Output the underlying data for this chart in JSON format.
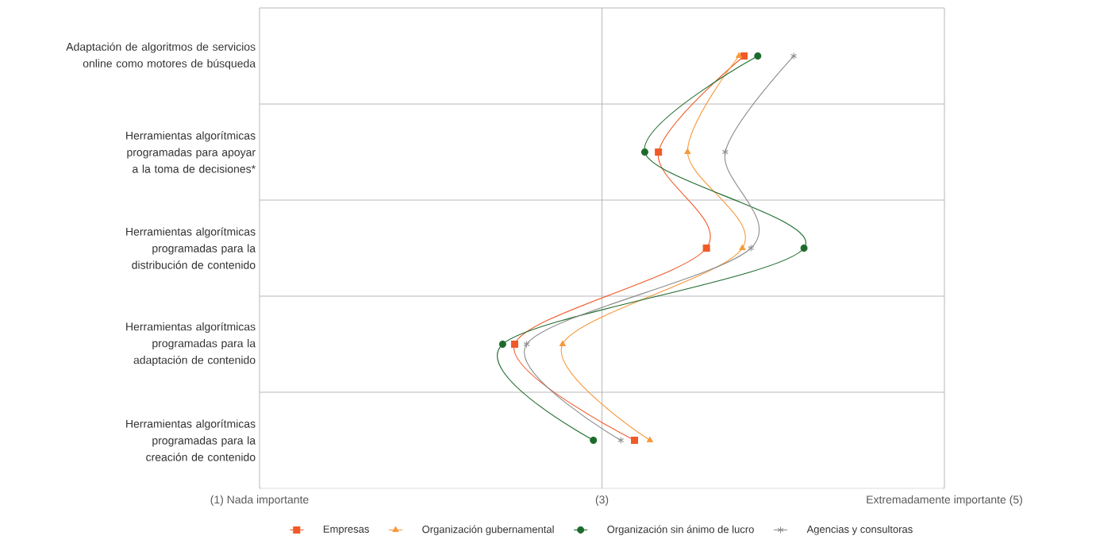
{
  "chart_data": {
    "type": "line",
    "orientation": "horizontal",
    "categories": [
      "Adaptación de algoritmos de servicios online como motores de búsqueda",
      "Herramientas algorítmicas programadas para apoyar a la toma de decisiones*",
      "Herramientas algorítmicas programadas para la distribución de contenido",
      "Herramientas algorítmicas programadas para la adaptación de contenido",
      "Herramientas algorítmicas programadas para la creación de contenido"
    ],
    "series": [
      {
        "name": "Empresas",
        "color": "#f05a28",
        "marker": "square",
        "values": [
          3.83,
          3.33,
          3.61,
          2.49,
          3.19
        ]
      },
      {
        "name": "Organización gubernamental",
        "color": "#f7993a",
        "marker": "triangle",
        "values": [
          3.8,
          3.5,
          3.82,
          2.77,
          3.28
        ]
      },
      {
        "name": "Organización sin ánimo de lucro",
        "color": "#1d6b2c",
        "marker": "circle",
        "values": [
          3.91,
          3.25,
          4.18,
          2.42,
          2.95
        ]
      },
      {
        "name": "Agencias y consultoras",
        "color": "#8c8c8c",
        "marker": "cross",
        "values": [
          4.12,
          3.72,
          3.87,
          2.56,
          3.11
        ]
      }
    ],
    "xlim": [
      1,
      5
    ],
    "xticks": [
      {
        "value": 1,
        "label": "(1) Nada importante"
      },
      {
        "value": 3,
        "label": "(3)"
      },
      {
        "value": 5,
        "label": "Extremadamente importante (5)"
      }
    ],
    "grid": true,
    "legend": "bottom"
  }
}
